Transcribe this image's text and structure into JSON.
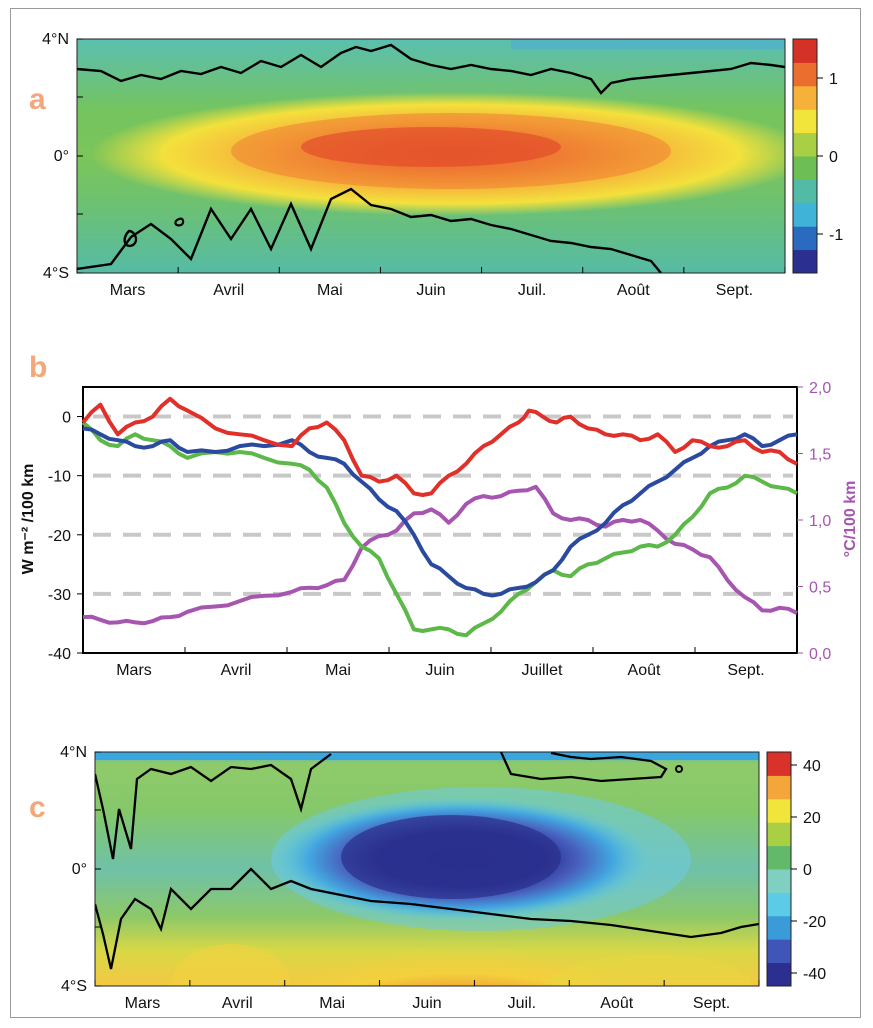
{
  "panels": {
    "a": {
      "letter": "a"
    },
    "b": {
      "letter": "b"
    },
    "c": {
      "letter": "c"
    }
  },
  "colors": {
    "red": "#e0302a",
    "blue": "#2a4aa0",
    "green": "#5cb848",
    "purple": "#a655b0",
    "panel_letter": "#f3a77a",
    "grid_dash": "#c8c8c8"
  },
  "chart_data": [
    {
      "id": "a",
      "type": "heatmap",
      "x_ticks": [
        "Mars",
        "Avril",
        "Mai",
        "Juin",
        "Juil.",
        "Août",
        "Sept."
      ],
      "y_ticks": [
        "4°N",
        "0°",
        "4°S"
      ],
      "colorbar_ticks": [
        "1",
        "0",
        "-1"
      ],
      "colorbar_range": [
        -1.5,
        1.5
      ],
      "colorbar_colors": [
        "#2b2f8f",
        "#2a6bc0",
        "#40b3d8",
        "#52bba5",
        "#6cbe55",
        "#a9cf44",
        "#f1e43a",
        "#f5b13a",
        "#ec6e2f",
        "#d43226"
      ],
      "description_of_field": "maximum near 0° from May to August"
    },
    {
      "id": "b",
      "type": "line",
      "x_ticks": [
        "Mars",
        "Avril",
        "Mai",
        "Juin",
        "Juillet",
        "Août",
        "Sept."
      ],
      "y_left_label": "W m⁻² /100 km",
      "y_left_ticks": [
        0,
        -10,
        -20,
        -30,
        -40
      ],
      "y_left_range": [
        -40,
        5
      ],
      "y_right_label": "°C/100 km",
      "y_right_ticks": [
        "2,0",
        "1,5",
        "1,0",
        "0,5",
        "0,0"
      ],
      "y_right_range": [
        0.0,
        2.0
      ],
      "x_range_days": [
        0,
        205
      ],
      "series": [
        {
          "color": "#e0302a",
          "axis": "left",
          "x": [
            0,
            5,
            10,
            15,
            20,
            25,
            30,
            38,
            45,
            52,
            60,
            65,
            70,
            75,
            80,
            85,
            90,
            95,
            100,
            105,
            110,
            115,
            120,
            125,
            128,
            132,
            136,
            140,
            145,
            150,
            155,
            160,
            165,
            170,
            175,
            180,
            185,
            190,
            195,
            200,
            205
          ],
          "y": [
            -1,
            2,
            -3,
            -1,
            0,
            3,
            1,
            -2,
            -3,
            -4,
            -5,
            -2,
            -1,
            -4,
            -10,
            -11,
            -10,
            -13,
            -13,
            -10,
            -8,
            -5,
            -3,
            -1,
            1,
            0,
            -1,
            0,
            -2,
            -3,
            -3,
            -4,
            -3,
            -6,
            -4,
            -5,
            -5,
            -4,
            -6,
            -6,
            -8
          ]
        },
        {
          "color": "#2a4aa0",
          "axis": "left",
          "x": [
            0,
            5,
            10,
            15,
            20,
            25,
            30,
            38,
            45,
            52,
            60,
            65,
            70,
            75,
            80,
            85,
            90,
            95,
            100,
            105,
            110,
            115,
            120,
            125,
            130,
            135,
            140,
            145,
            150,
            155,
            160,
            165,
            170,
            175,
            180,
            185,
            190,
            195,
            200,
            205
          ],
          "y": [
            -2,
            -3,
            -4,
            -5,
            -5,
            -4,
            -6,
            -6,
            -5,
            -5,
            -4,
            -6,
            -7,
            -8,
            -11,
            -14,
            -16,
            -20,
            -25,
            -27,
            -29,
            -30,
            -30,
            -29,
            -28,
            -26,
            -22,
            -20,
            -18,
            -15,
            -13,
            -11,
            -9,
            -7,
            -5,
            -4,
            -3,
            -5,
            -4,
            -3
          ]
        },
        {
          "color": "#5cb848",
          "axis": "left",
          "x": [
            0,
            5,
            10,
            15,
            20,
            25,
            30,
            38,
            45,
            52,
            60,
            65,
            70,
            75,
            80,
            85,
            90,
            95,
            100,
            105,
            110,
            115,
            120,
            125,
            130,
            135,
            140,
            145,
            150,
            155,
            160,
            165,
            170,
            175,
            180,
            185,
            190,
            195,
            200,
            205
          ],
          "y": [
            -1,
            -4,
            -5,
            -3,
            -4,
            -5,
            -7,
            -6,
            -6,
            -7,
            -8,
            -9,
            -12,
            -18,
            -22,
            -24,
            -30,
            -36,
            -36,
            -36,
            -37,
            -35,
            -33,
            -30,
            -28,
            -26,
            -27,
            -25,
            -24,
            -23,
            -22,
            -22,
            -20,
            -17,
            -13,
            -12,
            -10,
            -11,
            -12,
            -13
          ]
        },
        {
          "color": "#a655b0",
          "axis": "right",
          "x": [
            0,
            5,
            10,
            15,
            20,
            25,
            30,
            38,
            45,
            52,
            60,
            65,
            70,
            75,
            80,
            85,
            90,
            95,
            100,
            105,
            110,
            115,
            120,
            125,
            130,
            135,
            140,
            145,
            150,
            155,
            160,
            165,
            170,
            175,
            180,
            185,
            190,
            195,
            200,
            205
          ],
          "y": [
            0.27,
            0.25,
            0.23,
            0.23,
            0.24,
            0.27,
            0.31,
            0.35,
            0.39,
            0.43,
            0.46,
            0.49,
            0.51,
            0.55,
            0.79,
            0.88,
            0.92,
            1.05,
            1.08,
            0.98,
            1.12,
            1.18,
            1.18,
            1.22,
            1.25,
            1.05,
            1.0,
            1.0,
            0.95,
            1.0,
            1.0,
            0.92,
            0.82,
            0.78,
            0.72,
            0.55,
            0.42,
            0.32,
            0.34,
            0.3
          ]
        }
      ]
    },
    {
      "id": "c",
      "type": "heatmap",
      "x_ticks": [
        "Mars",
        "Avril",
        "Mai",
        "Juin",
        "Juil.",
        "Août",
        "Sept."
      ],
      "y_ticks": [
        "4°N",
        "0°",
        "4°S"
      ],
      "colorbar_ticks": [
        "40",
        "20",
        "0",
        "-20",
        "-40"
      ],
      "colorbar_range": [
        -45,
        45
      ],
      "colorbar_colors": [
        "#2b2f8f",
        "#3f55b8",
        "#3b9ad8",
        "#5ccbe8",
        "#7fd0c0",
        "#62b96a",
        "#a9cf44",
        "#f1e43a",
        "#f5a63a",
        "#d8322a"
      ],
      "description_of_field": "minimum near 0° from May to August"
    }
  ]
}
